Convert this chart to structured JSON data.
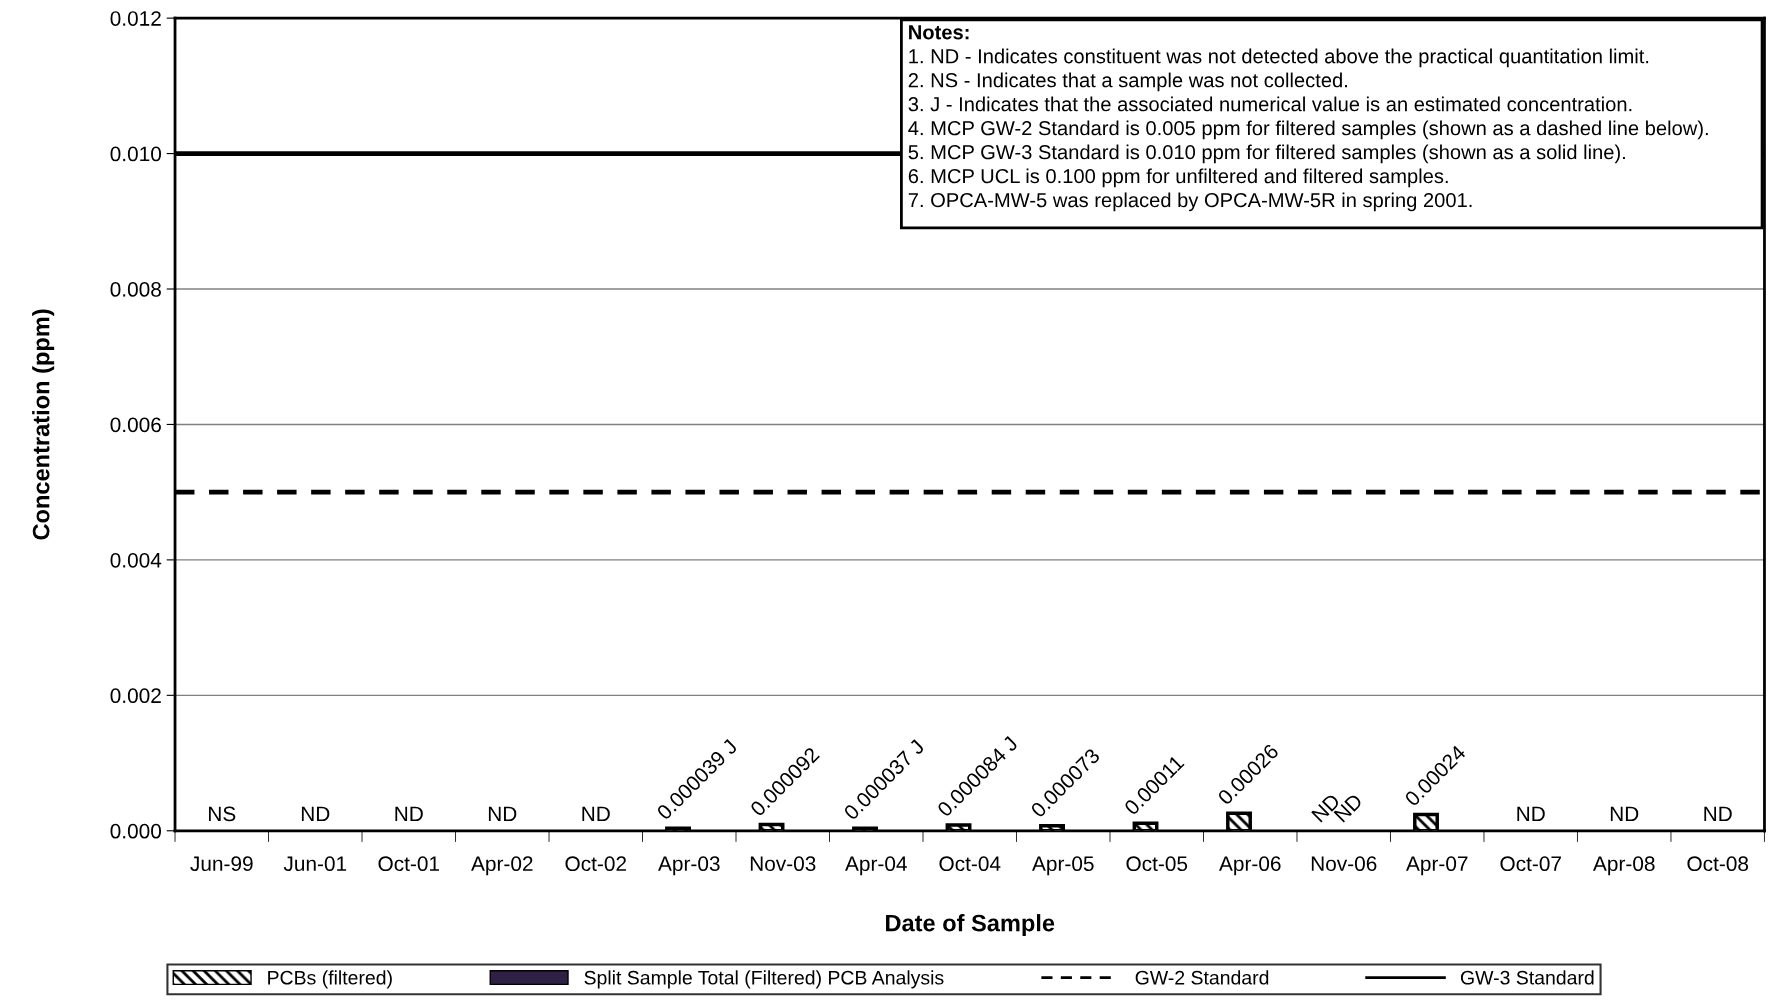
{
  "chart_data": {
    "type": "bar",
    "xlabel": "Date of Sample",
    "ylabel": "Concentration (ppm)",
    "categories": [
      "Jun-99",
      "Jun-01",
      "Oct-01",
      "Apr-02",
      "Oct-02",
      "Apr-03",
      "Nov-03",
      "Apr-04",
      "Oct-04",
      "Apr-05",
      "Oct-05",
      "Apr-06",
      "Nov-06",
      "Apr-07",
      "Oct-07",
      "Apr-08",
      "Oct-08"
    ],
    "series": [
      {
        "name": "PCBs (filtered)",
        "color": "#000000",
        "values": [
          null,
          null,
          null,
          null,
          null,
          3.9e-05,
          9.2e-05,
          3.7e-05,
          8.4e-05,
          7.3e-05,
          0.00011,
          0.00026,
          null,
          0.00024,
          null,
          null,
          null
        ],
        "value_labels": [
          "NS",
          "ND",
          "ND",
          "ND",
          "ND",
          "0.000039 J",
          "0.000092",
          "0.000037 J",
          "0.000084 J",
          "0.000073",
          "0.00011",
          "0.00026",
          "ND",
          "0.00024",
          "ND",
          "ND",
          "ND"
        ]
      },
      {
        "name": "Split Sample Total (Filtered) PCB Analysis",
        "color": "#2e2145",
        "values": [
          null,
          null,
          null,
          null,
          null,
          null,
          null,
          null,
          null,
          null,
          null,
          null,
          null,
          null,
          null,
          null,
          null
        ],
        "value_labels": [
          null,
          null,
          null,
          null,
          null,
          null,
          null,
          null,
          null,
          null,
          null,
          null,
          "ND",
          null,
          null,
          null,
          null
        ]
      }
    ],
    "ylim": [
      0,
      0.012
    ],
    "yticks": [
      {
        "value": 0,
        "label": "0.000"
      },
      {
        "value": 0.002,
        "label": "0.002"
      },
      {
        "value": 0.004,
        "label": "0.004"
      },
      {
        "value": 0.006,
        "label": "0.006"
      },
      {
        "value": 0.008,
        "label": "0.008"
      },
      {
        "value": 0.01,
        "label": "0.010"
      },
      {
        "value": 0.012,
        "label": "0.012"
      }
    ],
    "grid": "y",
    "legend": "bottom",
    "ref_lines": [
      {
        "axis": "y",
        "value": 0.005,
        "label": "GW-2 Standard",
        "color": "#000000",
        "line_style": "dashed"
      },
      {
        "axis": "y",
        "value": 0.01,
        "label": "GW-3 Standard",
        "color": "#000000",
        "line_style": "solid"
      }
    ],
    "annotations": [
      "Notes:",
      "1. ND - Indicates constituent was not detected above the practical quantitation limit.",
      "2. NS - Indicates that a sample was not collected.",
      "3. J - Indicates that the associated numerical value is an estimated concentration.",
      "4. MCP GW-2 Standard is 0.005 ppm for filtered samples (shown as a dashed line below).",
      "5. MCP GW-3 Standard is 0.010 ppm for filtered samples (shown as a solid line).",
      "6. MCP UCL is 0.100 ppm for unfiltered and filtered samples.",
      "7. OPCA-MW-5 was replaced by OPCA-MW-5R in spring 2001."
    ]
  }
}
